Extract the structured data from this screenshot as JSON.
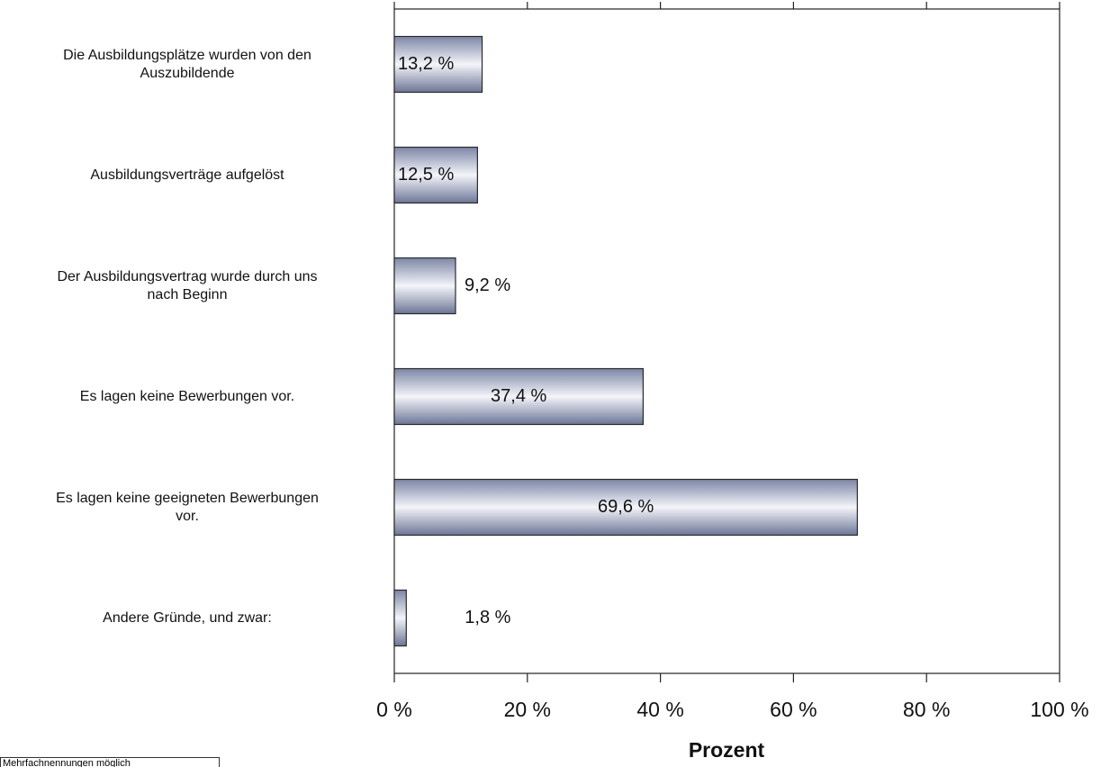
{
  "chart_data": {
    "type": "barh",
    "categories": [
      "Die Ausbildungsplätze wurden von den\nAuszubildende",
      "Ausbildungsverträge aufgelöst",
      "Der Ausbildungsvertrag wurde durch uns\nnach Beginn",
      "Es lagen keine Bewerbungen vor.",
      "Es lagen keine geeigneten Bewerbungen\nvor.",
      "Andere Gründe, und zwar:"
    ],
    "values": [
      13.2,
      12.5,
      9.2,
      37.4,
      69.6,
      1.8
    ],
    "value_labels": [
      "13,2 %",
      "12,5 %",
      "9,2 %",
      "37,4 %",
      "69,6 %",
      "1,8 %"
    ],
    "color": "#8a93b0",
    "xlabel": "Prozent",
    "xlim": [
      0,
      100
    ],
    "xticks": [
      {
        "value": 0,
        "label": "0 %"
      },
      {
        "value": 20,
        "label": "20 %"
      },
      {
        "value": 40,
        "label": "40 %"
      },
      {
        "value": 60,
        "label": "60 %"
      },
      {
        "value": 80,
        "label": "80 %"
      },
      {
        "value": 100,
        "label": "100 %"
      }
    ],
    "note": "Mehrfachnennungen möglich"
  }
}
